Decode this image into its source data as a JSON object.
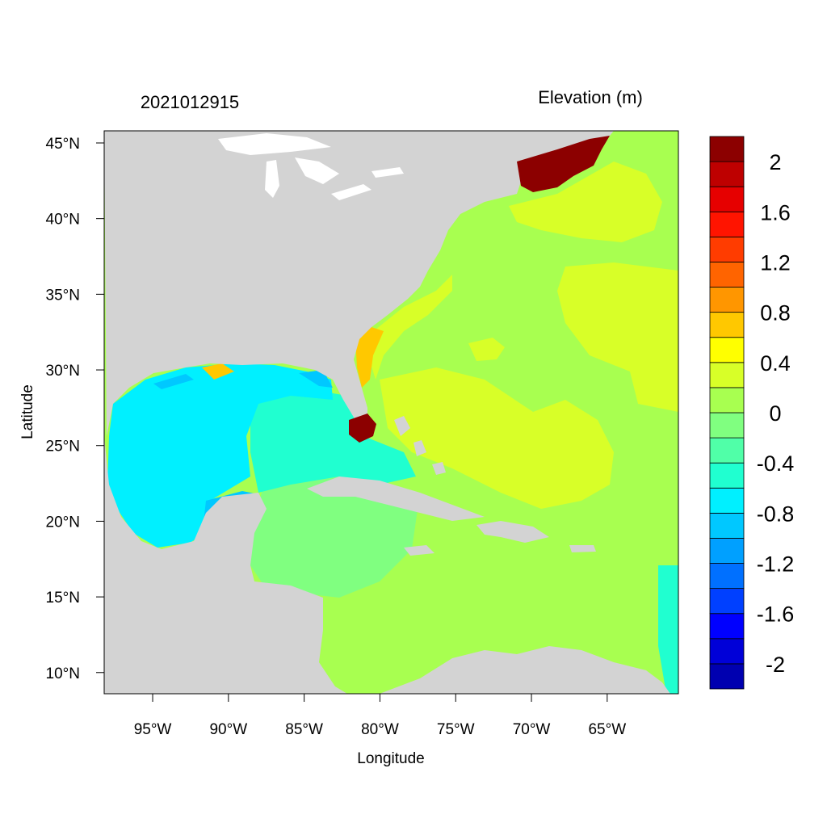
{
  "header": {
    "timestamp": "2021012915",
    "variable": "Elevation (m)"
  },
  "axes": {
    "xlabel": "Longitude",
    "ylabel": "Latitude",
    "x_ticks": [
      {
        "lon": -95,
        "label": "95°W"
      },
      {
        "lon": -90,
        "label": "90°W"
      },
      {
        "lon": -85,
        "label": "85°W"
      },
      {
        "lon": -80,
        "label": "80°W"
      },
      {
        "lon": -75,
        "label": "75°W"
      },
      {
        "lon": -70,
        "label": "70°W"
      },
      {
        "lon": -65,
        "label": "65°W"
      }
    ],
    "y_ticks": [
      {
        "lat": 45,
        "label": "45°N"
      },
      {
        "lat": 40,
        "label": "40°N"
      },
      {
        "lat": 35,
        "label": "35°N"
      },
      {
        "lat": 30,
        "label": "30°N"
      },
      {
        "lat": 25,
        "label": "25°N"
      },
      {
        "lat": 20,
        "label": "20°N"
      },
      {
        "lat": 15,
        "label": "15°N"
      },
      {
        "lat": 10,
        "label": "10°N"
      }
    ],
    "lon_range": [
      -98.2,
      -60.3
    ],
    "lat_range": [
      8.6,
      45.8
    ]
  },
  "colorbar": {
    "colors": [
      "#0000b0",
      "#0000d8",
      "#0000ff",
      "#0040ff",
      "#0070ff",
      "#00a0ff",
      "#00c8ff",
      "#00f0ff",
      "#20ffd0",
      "#50ffa8",
      "#80ff80",
      "#a8ff50",
      "#d8ff28",
      "#ffff00",
      "#ffc800",
      "#ff9600",
      "#ff6400",
      "#ff3c00",
      "#ff1400",
      "#e60000",
      "#be0000",
      "#8c0000"
    ],
    "labels": [
      "-2",
      "-1.6",
      "-1.2",
      "-0.8",
      "-0.4",
      "0",
      "0.4",
      "0.8",
      "1.2",
      "1.6",
      "2"
    ]
  },
  "colors": {
    "land": "#d3d3d3",
    "lakes": "#ffffff",
    "gulf": "#00f0ff",
    "gulf_west_edge": "#00c8ff",
    "gulf_east": "#20ffd0",
    "caribbean_west": "#80ff80",
    "atlantic": "#a8ff50",
    "atlantic_high": "#d8ff28",
    "coast_high": "#ffc800",
    "surge_max": "#8c0000"
  }
}
